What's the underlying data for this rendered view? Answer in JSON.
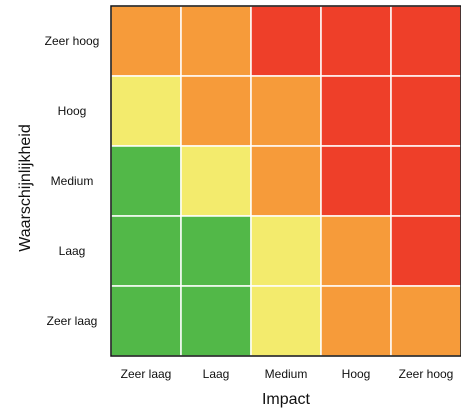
{
  "chart_data": {
    "type": "heatmap",
    "title": "",
    "xlabel": "Impact",
    "ylabel": "Waarschijnlijkheid",
    "x_categories": [
      "Zeer laag",
      "Laag",
      "Medium",
      "Hoog",
      "Zeer hoog"
    ],
    "y_categories": [
      "Zeer hoog",
      "Hoog",
      "Medium",
      "Laag",
      "Zeer laag"
    ],
    "levels": {
      "1": "#52b848",
      "2": "#f3eb6d",
      "3": "#f69b3a",
      "4": "#ee3f29"
    },
    "matrix": [
      [
        3,
        3,
        4,
        4,
        4
      ],
      [
        2,
        3,
        3,
        4,
        4
      ],
      [
        1,
        2,
        3,
        4,
        4
      ],
      [
        1,
        1,
        2,
        3,
        4
      ],
      [
        1,
        1,
        2,
        3,
        3
      ]
    ],
    "grid": true
  }
}
